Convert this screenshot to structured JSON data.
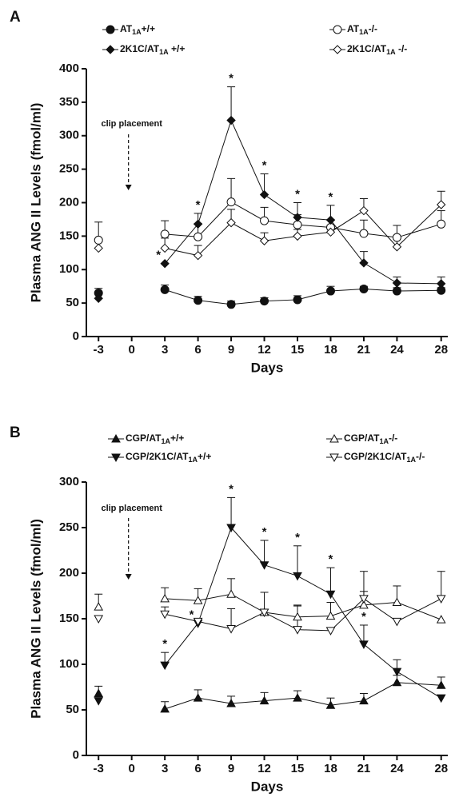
{
  "chart_data": [
    {
      "type": "line",
      "panel": "A",
      "ylabel": "Plasma ANG II Levels (fmol/ml)",
      "xlabel": "Days",
      "x": [
        -3,
        0,
        3,
        6,
        9,
        12,
        15,
        18,
        21,
        24,
        28
      ],
      "xlim": [
        -4.1,
        28.6
      ],
      "xticks": [
        -3,
        0,
        3,
        6,
        9,
        12,
        15,
        18,
        21,
        24,
        28
      ],
      "ylim": [
        0,
        400
      ],
      "yticks": [
        0,
        50,
        100,
        150,
        200,
        250,
        300,
        350,
        400
      ],
      "series": [
        {
          "name": "AT1A+/+",
          "color": "#111111",
          "marker": "circle",
          "filled": true,
          "values": [
            65,
            null,
            70,
            54,
            48,
            53,
            55,
            68,
            71,
            68,
            69
          ],
          "errors": [
            7,
            null,
            7,
            6,
            5,
            5,
            6,
            7,
            4,
            5,
            4
          ]
        },
        {
          "name": "AT1A-/-",
          "color": "#111111",
          "marker": "circle",
          "filled": false,
          "values": [
            144,
            null,
            153,
            149,
            201,
            173,
            167,
            163,
            154,
            148,
            168
          ],
          "errors": [
            27,
            null,
            20,
            20,
            35,
            20,
            15,
            12,
            20,
            18,
            20
          ]
        },
        {
          "name": "2K1C/AT1A +/+",
          "color": "#111111",
          "marker": "diamond",
          "filled": true,
          "values": [
            57,
            null,
            109,
            168,
            323,
            212,
            178,
            174,
            110,
            80,
            79
          ],
          "errors": [
            null,
            null,
            null,
            16,
            50,
            31,
            22,
            22,
            17,
            9,
            10
          ]
        },
        {
          "name": "2K1C/AT1A -/-",
          "color": "#111111",
          "marker": "diamond",
          "filled": false,
          "values": [
            132,
            null,
            132,
            121,
            170,
            143,
            150,
            156,
            188,
            134,
            197
          ],
          "errors": [
            10,
            null,
            15,
            15,
            20,
            12,
            10,
            10,
            18,
            15,
            20
          ]
        }
      ],
      "significance": [
        {
          "x": 3,
          "label": "*"
        },
        {
          "x": 6,
          "label": "*"
        },
        {
          "x": 9,
          "label": "*"
        },
        {
          "x": 12,
          "label": "*"
        },
        {
          "x": 15,
          "label": "*"
        },
        {
          "x": 18,
          "label": "*"
        }
      ],
      "annotation": {
        "text": "clip placement",
        "x": 0
      }
    },
    {
      "type": "line",
      "panel": "B",
      "ylabel": "Plasma ANG II Levels (fmol/ml)",
      "xlabel": "Days",
      "x": [
        -3,
        0,
        3,
        6,
        9,
        12,
        15,
        18,
        21,
        24,
        28
      ],
      "xlim": [
        -4.1,
        28.6
      ],
      "xticks": [
        -3,
        0,
        3,
        6,
        9,
        12,
        15,
        18,
        21,
        24,
        28
      ],
      "ylim": [
        0,
        300
      ],
      "yticks": [
        0,
        50,
        100,
        150,
        200,
        250,
        300
      ],
      "series": [
        {
          "name": "CGP/AT1A+/+",
          "color": "#111111",
          "marker": "triangle-up",
          "filled": true,
          "values": [
            68,
            null,
            51,
            63,
            57,
            60,
            63,
            55,
            60,
            80,
            77
          ],
          "errors": [
            8,
            null,
            8,
            9,
            8,
            9,
            8,
            8,
            8,
            8,
            9
          ]
        },
        {
          "name": "CGP/AT1A-/-",
          "color": "#111111",
          "marker": "triangle-up",
          "filled": false,
          "values": [
            163,
            null,
            172,
            170,
            177,
            157,
            152,
            153,
            165,
            168,
            149
          ],
          "errors": [
            14,
            null,
            12,
            13,
            17,
            22,
            12,
            15,
            15,
            18,
            null
          ]
        },
        {
          "name": "CGP/2K1C/AT1A+/+",
          "color": "#111111",
          "marker": "triangle-down",
          "filled": true,
          "values": [
            60,
            null,
            99,
            145,
            250,
            209,
            197,
            177,
            122,
            92,
            63
          ],
          "errors": [
            null,
            null,
            14,
            null,
            33,
            27,
            33,
            29,
            21,
            13,
            null
          ]
        },
        {
          "name": "CGP/2K1C/AT1A-/-",
          "color": "#111111",
          "marker": "triangle-down",
          "filled": false,
          "values": [
            150,
            null,
            155,
            147,
            139,
            157,
            138,
            137,
            172,
            147,
            172
          ],
          "errors": [
            null,
            null,
            8,
            null,
            22,
            null,
            27,
            null,
            30,
            null,
            30
          ]
        }
      ],
      "significance": [
        {
          "x": 3,
          "label": "*"
        },
        {
          "x": 6,
          "label": "*"
        },
        {
          "x": 9,
          "label": "*"
        },
        {
          "x": 12,
          "label": "*"
        },
        {
          "x": 15,
          "label": "*"
        },
        {
          "x": 18,
          "label": "*"
        },
        {
          "x": 21,
          "label": "*"
        }
      ],
      "annotation": {
        "text": "clip placement",
        "x": 0
      }
    }
  ]
}
